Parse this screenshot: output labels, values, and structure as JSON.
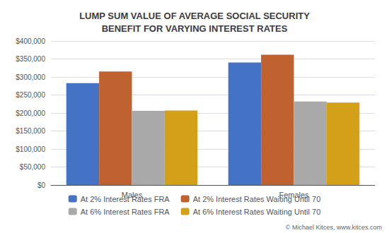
{
  "chart_data": {
    "type": "bar",
    "title": "LUMP SUM VALUE OF AVERAGE SOCIAL SECURITY\nBENEFIT FOR VARYING INTEREST RATES",
    "categories": [
      "Males",
      "Females"
    ],
    "series": [
      {
        "name": "At 2% Interest Rates FRA",
        "color": "#4472C4",
        "values": [
          283000,
          340000
        ]
      },
      {
        "name": "At 2% Interest Rates Waiting Until 70",
        "color": "#C0622F",
        "values": [
          315000,
          362000
        ]
      },
      {
        "name": "At 6% Interest Rates FRA",
        "color": "#A9A9A9",
        "values": [
          206000,
          232000
        ]
      },
      {
        "name": "At 6% Interest Rates Waiting Until 70",
        "color": "#D4A017",
        "values": [
          207000,
          229000
        ]
      }
    ],
    "ylim": [
      0,
      400000
    ],
    "yticks": [
      {
        "value": 0,
        "label": "$0"
      },
      {
        "value": 50000,
        "label": "$50,000"
      },
      {
        "value": 100000,
        "label": "$100,000"
      },
      {
        "value": 150000,
        "label": "$150,000"
      },
      {
        "value": 200000,
        "label": "$200,000"
      },
      {
        "value": 250000,
        "label": "$250,000"
      },
      {
        "value": 300000,
        "label": "$300,000"
      },
      {
        "value": 350000,
        "label": "$350,000"
      },
      {
        "value": 400000,
        "label": "$400,000"
      }
    ],
    "grid": true,
    "legend": "bottom",
    "annotations": [
      "© Michael Kitces, www.kitces.com"
    ]
  }
}
